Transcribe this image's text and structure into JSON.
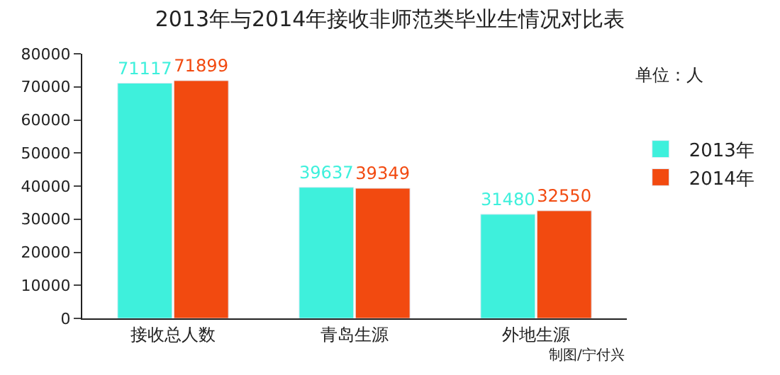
{
  "chart_data": {
    "type": "bar",
    "title": "2013年与2014年接收非师范类毕业生情况对比表",
    "categories": [
      "接收总人数",
      "青岛生源",
      "外地生源"
    ],
    "series": [
      {
        "name": "2013年",
        "color": "#3ef0dc",
        "values": [
          71117,
          39637,
          31480
        ]
      },
      {
        "name": "2014年",
        "color": "#f24a10",
        "values": [
          71899,
          39349,
          32550
        ]
      }
    ],
    "ylim": [
      0,
      80000
    ],
    "yticks": [
      0,
      10000,
      20000,
      30000,
      40000,
      50000,
      60000,
      70000,
      80000
    ],
    "data_labels": true,
    "legend": "right",
    "annotations": [
      "单位：人",
      "制图/宁付兴"
    ]
  }
}
